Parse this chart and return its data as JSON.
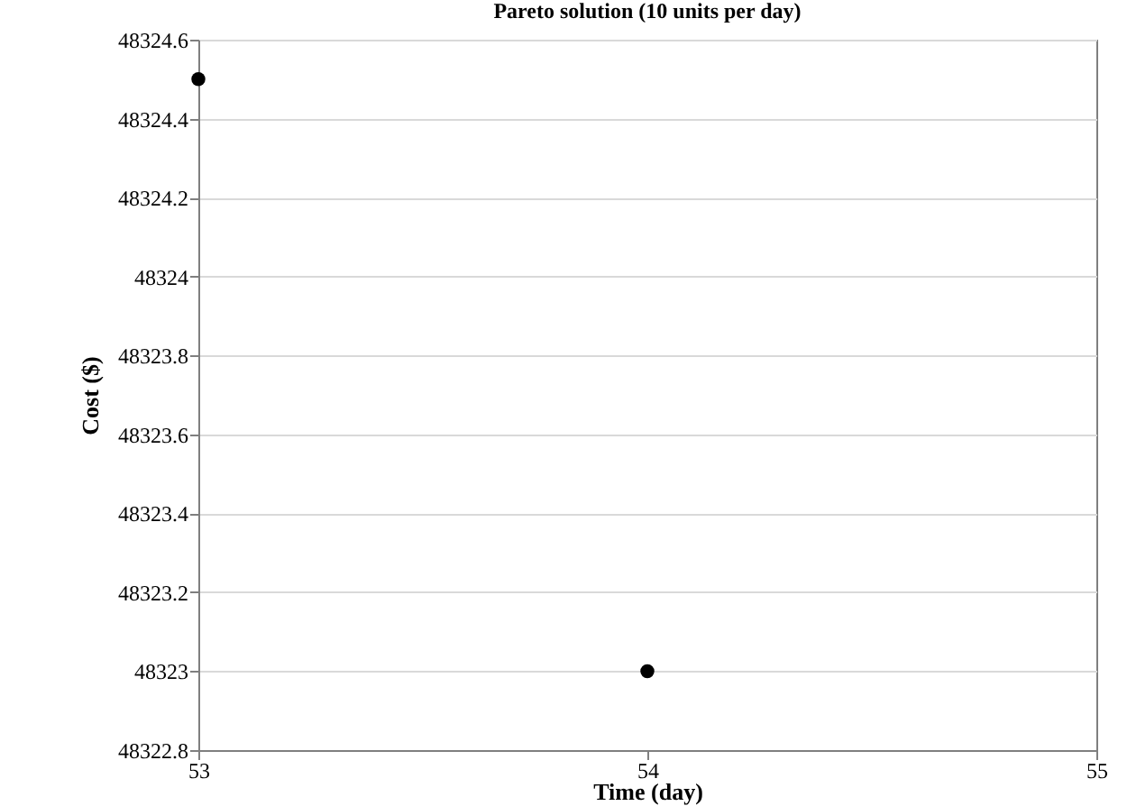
{
  "chart_data": {
    "type": "scatter",
    "title": "Pareto solution (10 units per day)",
    "xlabel": "Time (day)",
    "ylabel": "Cost  ($)",
    "x": [
      53,
      54
    ],
    "values": [
      48324.5,
      48323
    ],
    "color": "#000000",
    "marker": "circle",
    "xlim": [
      53,
      55
    ],
    "xticks": [
      53,
      54,
      55
    ],
    "ylim": [
      48322.8,
      48324.6
    ],
    "yticks": [
      48322.8,
      48323,
      48323.2,
      48323.4,
      48323.6,
      48323.8,
      48324,
      48324.2,
      48324.4,
      48324.6
    ],
    "grid": "y"
  }
}
